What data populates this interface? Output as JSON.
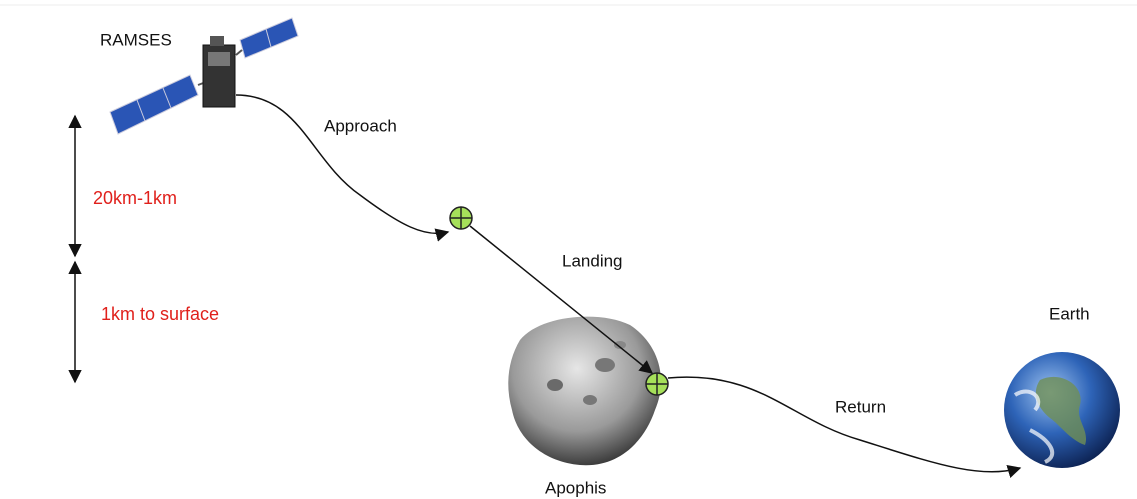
{
  "labels": {
    "spacecraft": "RAMSES",
    "phase_1": "Approach",
    "phase_2": "Landing",
    "phase_3": "Return",
    "asteroid": "Apophis",
    "planet": "Earth",
    "range_1": "20km-1km",
    "range_2": "1km to surface"
  }
}
